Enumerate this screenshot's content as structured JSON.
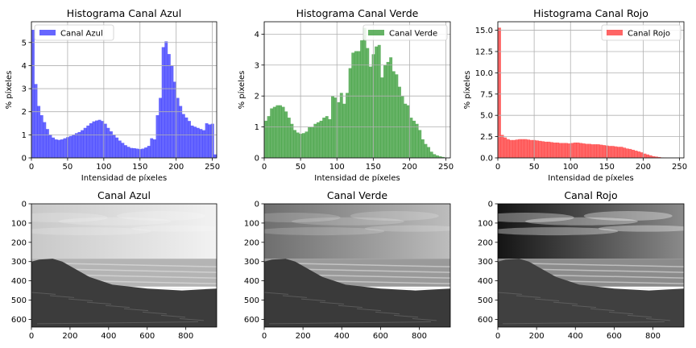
{
  "chart_data": [
    {
      "type": "bar",
      "title": "Histograma Canal Azul",
      "xlabel": "Intensidad de píxeles",
      "ylabel": "% píxeles",
      "xlim": [
        0,
        256
      ],
      "ylim": [
        0,
        5.9
      ],
      "xticks": [
        0,
        50,
        100,
        150,
        200,
        250
      ],
      "yticks": [
        0,
        1,
        2,
        3,
        4,
        5
      ],
      "grid": true,
      "legend": {
        "position": "top-left"
      },
      "series": [
        {
          "name": "Canal Azul",
          "color": "#0000ff",
          "bin_width": 4,
          "values": [
            5.55,
            3.2,
            2.25,
            1.85,
            1.55,
            1.25,
            1.0,
            0.88,
            0.8,
            0.78,
            0.8,
            0.85,
            0.9,
            0.95,
            1.0,
            1.07,
            1.12,
            1.2,
            1.3,
            1.4,
            1.5,
            1.58,
            1.62,
            1.65,
            1.6,
            1.48,
            1.3,
            1.15,
            1.0,
            0.88,
            0.75,
            0.65,
            0.55,
            0.48,
            0.43,
            0.42,
            0.4,
            0.38,
            0.4,
            0.45,
            0.52,
            0.85,
            0.8,
            1.85,
            2.6,
            4.8,
            5.05,
            4.5,
            4.0,
            3.3,
            2.6,
            2.25,
            1.9,
            1.75,
            1.6,
            1.4,
            1.35,
            1.3,
            1.25,
            1.2,
            1.5,
            1.45,
            1.48,
            0.15
          ]
        }
      ]
    },
    {
      "type": "bar",
      "title": "Histograma Canal Verde",
      "xlabel": "Intensidad de píxeles",
      "ylabel": "% píxeles",
      "xlim": [
        0,
        256
      ],
      "ylim": [
        0,
        4.4
      ],
      "xticks": [
        0,
        50,
        100,
        150,
        200,
        250
      ],
      "yticks": [
        0,
        1,
        2,
        3,
        4
      ],
      "grid": true,
      "legend": {
        "position": "top-right"
      },
      "series": [
        {
          "name": "Canal Verde",
          "color": "#008000",
          "bin_width": 4,
          "values": [
            1.2,
            1.35,
            1.6,
            1.65,
            1.7,
            1.7,
            1.65,
            1.5,
            1.3,
            1.1,
            0.9,
            0.82,
            0.78,
            0.8,
            0.85,
            1.0,
            1.0,
            1.1,
            1.15,
            1.2,
            1.3,
            1.35,
            1.25,
            2.0,
            1.95,
            1.8,
            2.1,
            1.75,
            2.1,
            2.9,
            3.4,
            3.45,
            3.45,
            3.8,
            4.2,
            3.55,
            2.95,
            3.35,
            3.6,
            3.65,
            2.6,
            3.0,
            3.1,
            3.25,
            2.8,
            2.7,
            2.3,
            2.0,
            1.75,
            1.7,
            1.3,
            1.2,
            1.1,
            0.9,
            0.6,
            0.45,
            0.35,
            0.2,
            0.12,
            0.08,
            0.05,
            0.03,
            0.0,
            0.0
          ]
        }
      ]
    },
    {
      "type": "bar",
      "title": "Histograma Canal Rojo",
      "xlabel": "Intensidad de píxeles",
      "ylabel": "% píxeles",
      "xlim": [
        0,
        256
      ],
      "ylim": [
        0,
        16.0
      ],
      "xticks": [
        0,
        50,
        100,
        150,
        200,
        250
      ],
      "yticks": [
        0.0,
        2.5,
        5.0,
        7.5,
        10.0,
        12.5,
        15.0
      ],
      "ytick_labels": [
        "0.0",
        "2.5",
        "5.0",
        "7.5",
        "10.0",
        "12.5",
        "15.0"
      ],
      "grid": true,
      "legend": {
        "position": "top-right"
      },
      "series": [
        {
          "name": "Canal Rojo",
          "color": "#ff0000",
          "bin_width": 4,
          "values": [
            15.3,
            2.7,
            2.4,
            2.2,
            2.1,
            2.1,
            2.15,
            2.2,
            2.2,
            2.2,
            2.15,
            2.1,
            2.1,
            2.05,
            2.0,
            1.95,
            1.9,
            1.9,
            1.85,
            1.8,
            1.8,
            1.75,
            1.75,
            1.75,
            1.7,
            1.75,
            1.8,
            1.8,
            1.75,
            1.7,
            1.65,
            1.65,
            1.6,
            1.6,
            1.6,
            1.55,
            1.5,
            1.45,
            1.4,
            1.4,
            1.35,
            1.3,
            1.3,
            1.2,
            1.1,
            1.05,
            0.95,
            0.85,
            0.75,
            0.65,
            0.5,
            0.4,
            0.3,
            0.2,
            0.15,
            0.1,
            0.05,
            0.03,
            0.0,
            0.0,
            0.0,
            0.0,
            0.0,
            0.0
          ]
        }
      ]
    },
    {
      "type": "image",
      "title": "Canal Azul",
      "image_width": 960,
      "image_height": 640,
      "xticks": [
        0,
        200,
        400,
        600,
        800
      ],
      "yticks": [
        0,
        100,
        200,
        300,
        400,
        500,
        600
      ],
      "tone": {
        "sky_left": "#c8c8c8",
        "sky_right": "#f2f2f2",
        "sea": "#b4b4b4",
        "rock": "#3c3c3c"
      }
    },
    {
      "type": "image",
      "title": "Canal Verde",
      "image_width": 960,
      "image_height": 640,
      "xticks": [
        0,
        200,
        400,
        600,
        800
      ],
      "yticks": [
        0,
        100,
        200,
        300,
        400,
        500,
        600
      ],
      "tone": {
        "sky_left": "#6e6e6e",
        "sky_right": "#bdbdbd",
        "sea": "#9a9a9a",
        "rock": "#3a3a3a"
      }
    },
    {
      "type": "image",
      "title": "Canal Rojo",
      "image_width": 960,
      "image_height": 640,
      "xticks": [
        0,
        200,
        400,
        600,
        800
      ],
      "yticks": [
        0,
        100,
        200,
        300,
        400,
        500,
        600
      ],
      "tone": {
        "sky_left": "#141414",
        "sky_right": "#8a8a8a",
        "sea": "#8c8c8c",
        "rock": "#404040"
      }
    }
  ]
}
